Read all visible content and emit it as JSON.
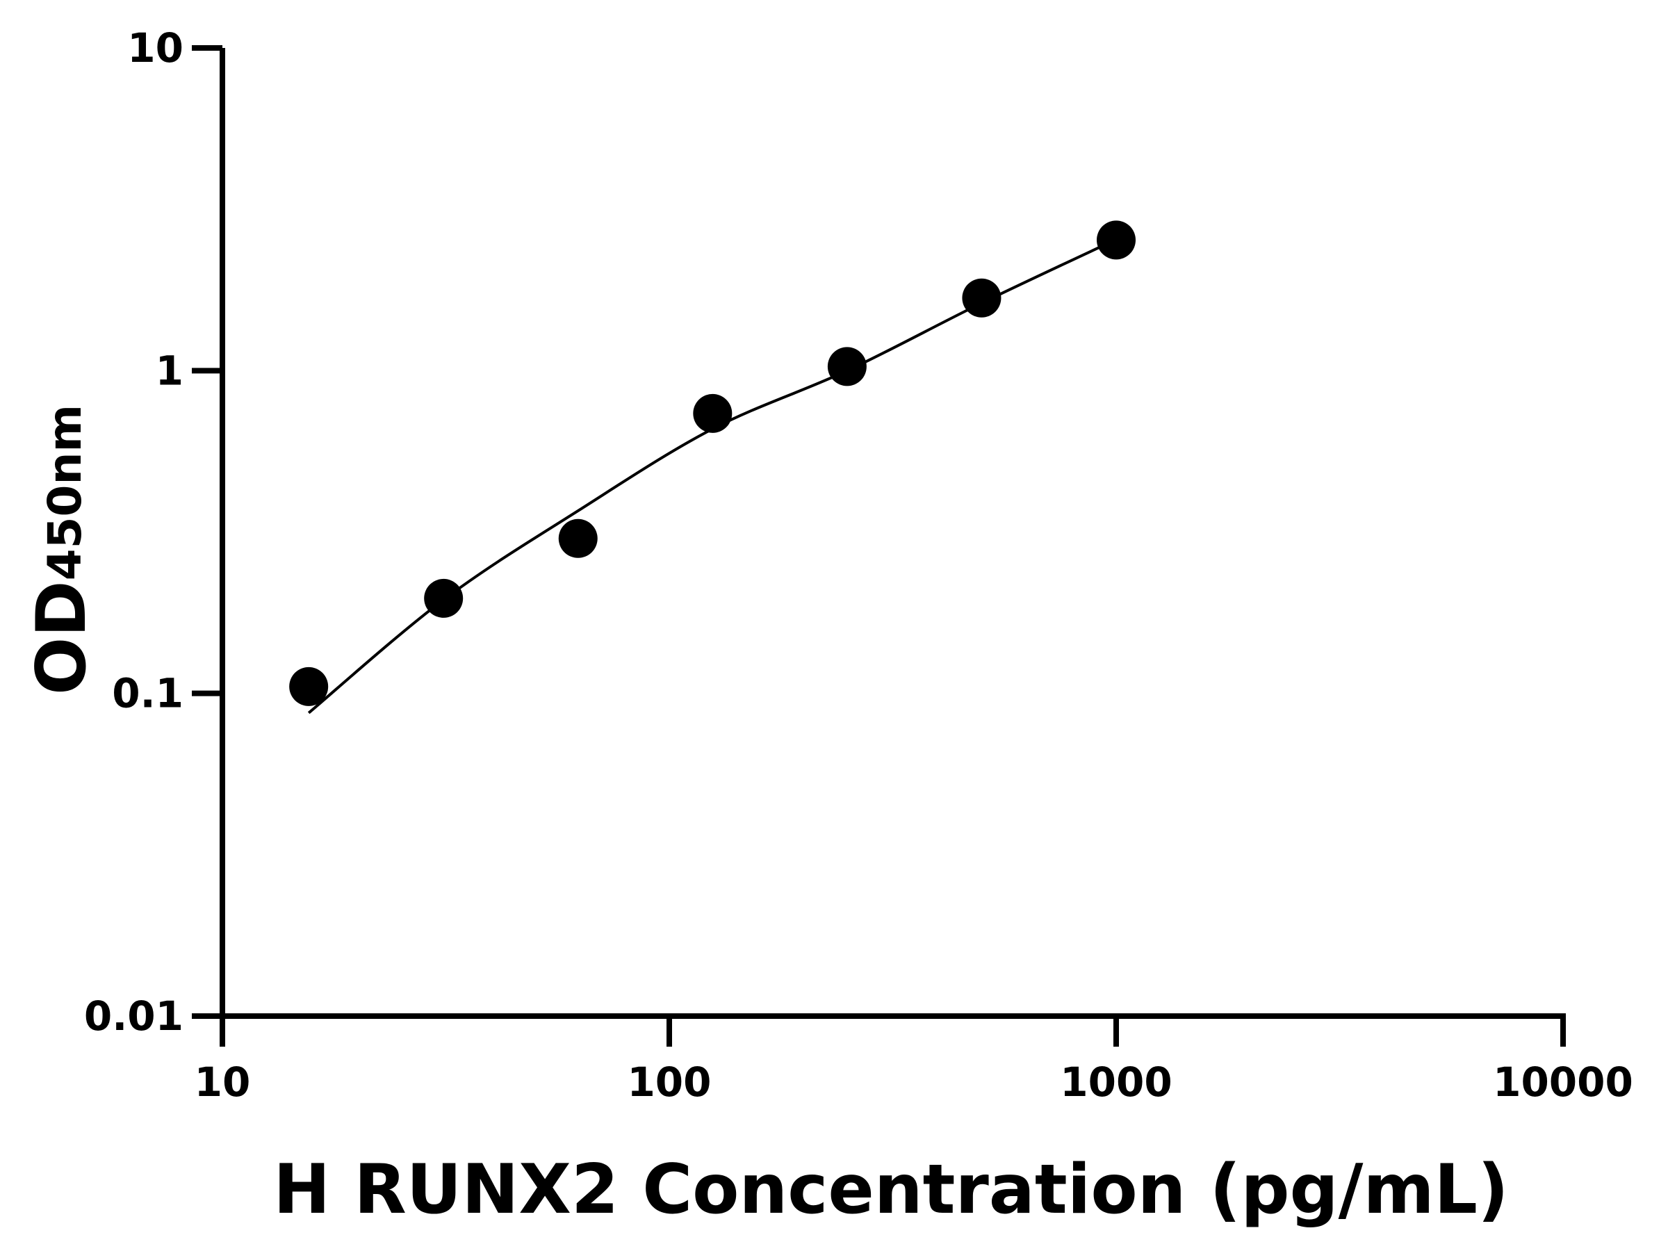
{
  "chart_data": {
    "type": "scatter",
    "title": "",
    "xlabel": "H RUNX2 Concentration (pg/mL)",
    "ylabel": "OD",
    "ylabel_subscript": "450nm",
    "xscale": "log",
    "yscale": "log",
    "xlim": [
      10,
      10000
    ],
    "ylim": [
      0.01,
      10
    ],
    "xticks": [
      "10",
      "100",
      "1000",
      "10000"
    ],
    "xtick_values": [
      10,
      100,
      1000,
      10000
    ],
    "yticks": [
      "0.01",
      "0.1",
      "1",
      "10"
    ],
    "ytick_values": [
      0.01,
      0.1,
      1,
      10
    ],
    "grid": false,
    "legend": "none",
    "color": "#000000",
    "points": {
      "x": [
        15.6,
        31.25,
        62.5,
        125,
        250,
        500,
        1000
      ],
      "y": [
        0.105,
        0.197,
        0.302,
        0.737,
        1.03,
        1.68,
        2.54
      ]
    },
    "fit_curve": {
      "x": [
        15.6,
        31.25,
        62.5,
        125,
        250,
        500,
        1000
      ],
      "y": [
        0.087,
        0.195,
        0.368,
        0.66,
        1.0,
        1.62,
        2.55
      ]
    }
  }
}
